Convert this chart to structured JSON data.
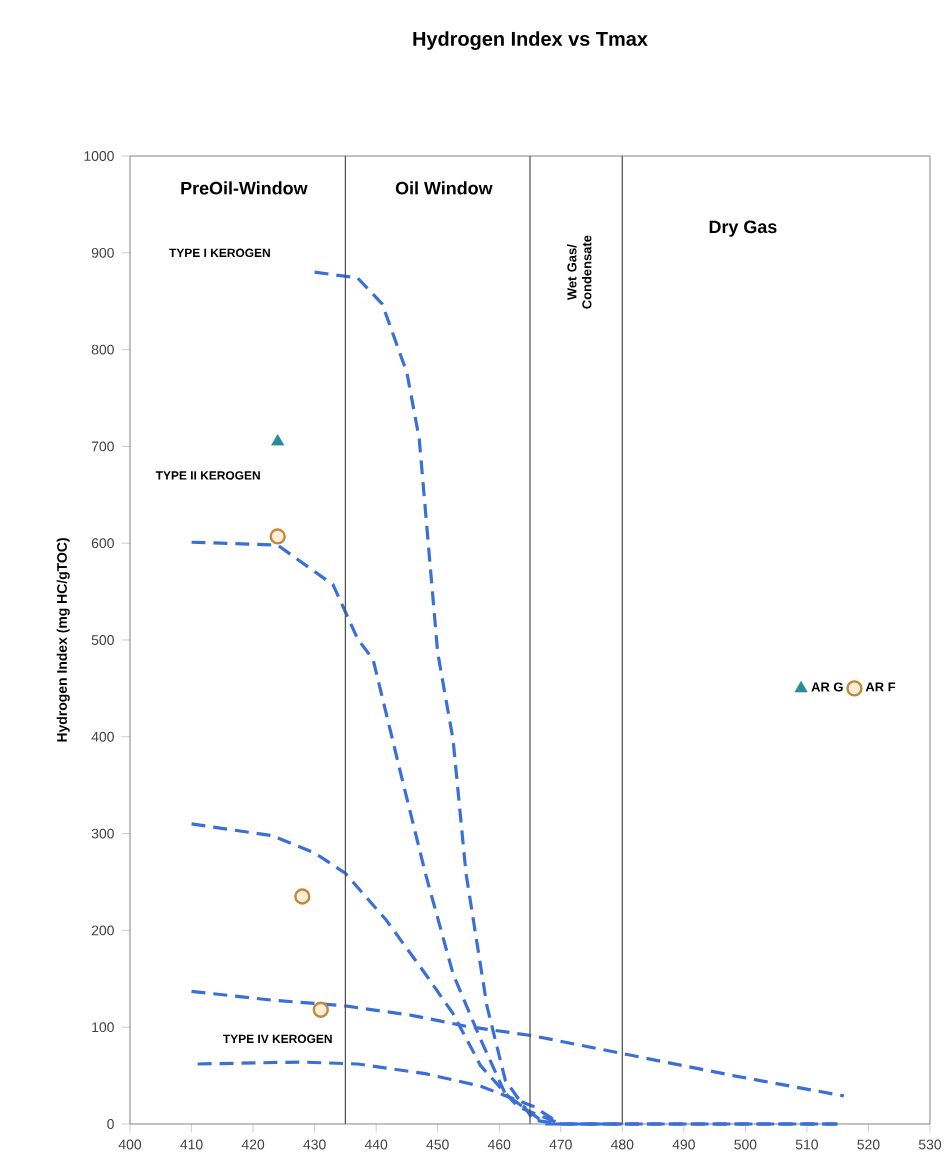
{
  "chart_data": {
    "type": "line",
    "title": "Hydrogen Index vs Tmax",
    "ylabel": "Hydrogen Index (mg HC/gTOC)",
    "xlim": [
      400,
      530
    ],
    "ylim": [
      0,
      1000
    ],
    "xticks": [
      400,
      410,
      420,
      430,
      440,
      450,
      460,
      470,
      480,
      490,
      500,
      510,
      520,
      530
    ],
    "yticks": [
      0,
      100,
      200,
      300,
      400,
      500,
      600,
      700,
      800,
      900,
      1000
    ],
    "grid": false,
    "legend": "right",
    "series": [
      {
        "color": "#3a6fd8",
        "line_style": "dashed",
        "marker": "none",
        "x": [
          430,
          437,
          441,
          445,
          447,
          450,
          452.5,
          454.6,
          458,
          461,
          465.6,
          470,
          490,
          515
        ],
        "values": [
          880,
          874,
          847,
          776,
          708,
          487,
          397,
          259,
          122,
          45,
          4,
          0,
          0,
          0
        ]
      },
      {
        "color": "#3a6fd8",
        "line_style": "dashed",
        "marker": "none",
        "x": [
          410,
          424,
          433,
          437,
          439.5,
          444,
          448,
          452.5,
          457,
          461,
          467.6,
          480
        ],
        "values": [
          601,
          598,
          557,
          501,
          480,
          362,
          259,
          155,
          87,
          31,
          0,
          0
        ]
      },
      {
        "color": "#3a6fd8",
        "line_style": "dashed",
        "marker": "none",
        "x": [
          410,
          423,
          430,
          435,
          441.6,
          448,
          452.5,
          457,
          463,
          470,
          515
        ],
        "values": [
          310,
          298,
          280,
          259,
          211,
          155,
          114,
          60,
          18,
          0,
          0
        ]
      },
      {
        "color": "#3a6fd8",
        "line_style": "dashed",
        "marker": "none",
        "x": [
          410,
          423,
          435,
          446,
          454.6,
          465.6,
          480.6,
          498,
          516
        ],
        "values": [
          137,
          128,
          122,
          112,
          101,
          91,
          72,
          50,
          29
        ]
      },
      {
        "color": "#3a6fd8",
        "line_style": "dashed",
        "marker": "none",
        "x": [
          411,
          427.6,
          437,
          448,
          457,
          465.6,
          470,
          515
        ],
        "values": [
          62,
          64,
          62,
          52,
          39,
          18,
          0,
          0
        ]
      },
      {
        "type": "scatter",
        "name": "AR G",
        "color": "#2a8a9a",
        "marker": "triangle",
        "x": [
          424
        ],
        "values": [
          705
        ]
      },
      {
        "type": "scatter",
        "name": "AR F",
        "color": "#c08a3a",
        "marker": "circle",
        "x": [
          424,
          428,
          431
        ],
        "values": [
          607,
          235,
          118
        ]
      }
    ],
    "ref_lines": [
      {
        "axis": "x",
        "value": 435
      },
      {
        "axis": "x",
        "value": 465
      },
      {
        "axis": "x",
        "value": 480
      }
    ],
    "annotations": [
      "PreOil-Window",
      "Oil Window",
      "Wet Gas/ Condensate",
      "Dry Gas",
      "TYPE I KEROGEN",
      "TYPE II KEROGEN",
      "TYPE IV KEROGEN"
    ]
  }
}
